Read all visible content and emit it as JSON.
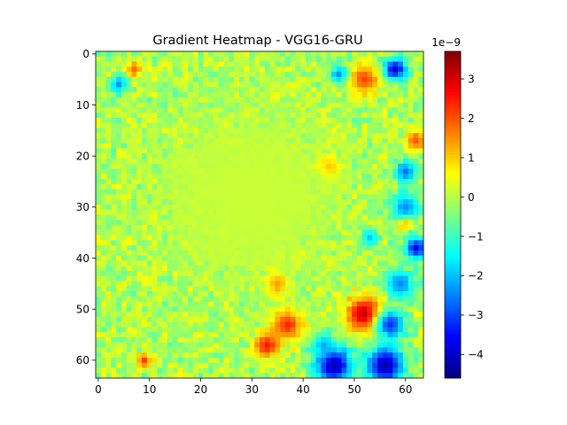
{
  "chart_data": {
    "type": "heatmap",
    "title": "Gradient Heatmap - VGG16-GRU",
    "xlabel": "",
    "ylabel": "",
    "grid": false,
    "colormap": "jet",
    "x_ticks": [
      "0",
      "10",
      "20",
      "30",
      "40",
      "50",
      "60"
    ],
    "y_ticks": [
      "0",
      "10",
      "20",
      "30",
      "40",
      "50",
      "60"
    ],
    "x_range": [
      0,
      63
    ],
    "y_range": [
      0,
      63
    ],
    "colorbar": {
      "offset_text": "1e−9",
      "ticks": [
        "3",
        "2",
        "1",
        "0",
        "−1",
        "−2",
        "−3",
        "−4"
      ],
      "tick_values": [
        3,
        2,
        1,
        0,
        -1,
        -2,
        -3,
        -4
      ],
      "vmin": -4.6,
      "vmax": 3.7,
      "unit_scale": 1e-09
    },
    "grid_size": [
      64,
      64
    ],
    "background_value": -0.1,
    "features": [
      {
        "row": 51,
        "col": 52,
        "radius": 2.5,
        "value": 3.3
      },
      {
        "row": 53,
        "col": 37,
        "radius": 2.0,
        "value": 2.6
      },
      {
        "row": 57,
        "col": 33,
        "radius": 1.8,
        "value": 2.6
      },
      {
        "row": 45,
        "col": 35,
        "radius": 1.5,
        "value": 2.0
      },
      {
        "row": 5,
        "col": 52,
        "radius": 2.0,
        "value": 2.2
      },
      {
        "row": 3,
        "col": 7,
        "radius": 1.2,
        "value": 1.8
      },
      {
        "row": 17,
        "col": 62,
        "radius": 1.5,
        "value": 2.0
      },
      {
        "row": 33,
        "col": 60,
        "radius": 1.0,
        "value": 2.6
      },
      {
        "row": 60,
        "col": 9,
        "radius": 1.0,
        "value": 2.2
      },
      {
        "row": 22,
        "col": 45,
        "radius": 1.5,
        "value": 1.6
      },
      {
        "row": 61,
        "col": 46,
        "radius": 2.5,
        "value": -4.3
      },
      {
        "row": 61,
        "col": 56,
        "radius": 2.5,
        "value": -4.3
      },
      {
        "row": 53,
        "col": 57,
        "radius": 2.0,
        "value": -3.2
      },
      {
        "row": 38,
        "col": 62,
        "radius": 1.5,
        "value": -3.8
      },
      {
        "row": 3,
        "col": 58,
        "radius": 1.5,
        "value": -4.0
      },
      {
        "row": 23,
        "col": 60,
        "radius": 1.5,
        "value": -2.8
      },
      {
        "row": 30,
        "col": 60,
        "radius": 2.0,
        "value": -2.5
      },
      {
        "row": 45,
        "col": 59,
        "radius": 2.0,
        "value": -2.5
      },
      {
        "row": 6,
        "col": 4,
        "radius": 1.2,
        "value": -2.4
      },
      {
        "row": 57,
        "col": 44,
        "radius": 1.5,
        "value": -2.2
      },
      {
        "row": 4,
        "col": 47,
        "radius": 1.2,
        "value": -2.5
      },
      {
        "row": 36,
        "col": 53,
        "radius": 1.2,
        "value": -2.2
      },
      {
        "row": 28,
        "col": 30,
        "radius": 12,
        "value": 0.15
      }
    ]
  }
}
